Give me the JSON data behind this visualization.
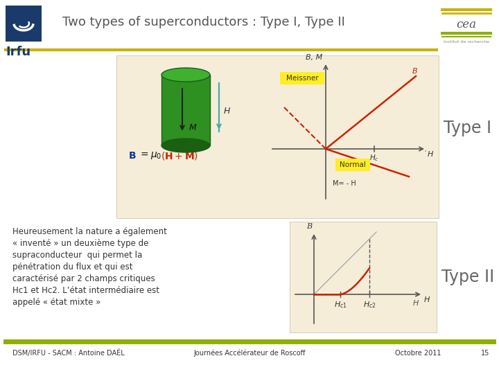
{
  "title": "Two types of superconductors : Type I, Type II",
  "bg_color": "#ffffff",
  "header_line_color": "#c8b400",
  "footer_line_color": "#8db000",
  "type1_label": "Type I",
  "type2_label": "Type II",
  "body_text": "Heureusement la nature a également\n« inventé » un deuxième type de\nsupraconducteur  qui permet la\npénétration du flux et qui est\ncaractérisé par 2 champs critiques\nHc1 et Hc2. L’état intermédiaire est\nappelé « état mixte »",
  "footer_left": "DSM/IRFU - SACM : Antoine DAËL",
  "footer_center": "Journées Accélérateur de Roscoff",
  "footer_right": "Octobre 2011",
  "footer_page": "15",
  "irfu_blue": "#1a3a6b",
  "cea_gold": "#c8b400",
  "cea_green": "#8db000",
  "panel_bg": "#f5edd8",
  "red_line": "#cc2200",
  "formula_blue": "#1133aa",
  "formula_red": "#cc2200"
}
